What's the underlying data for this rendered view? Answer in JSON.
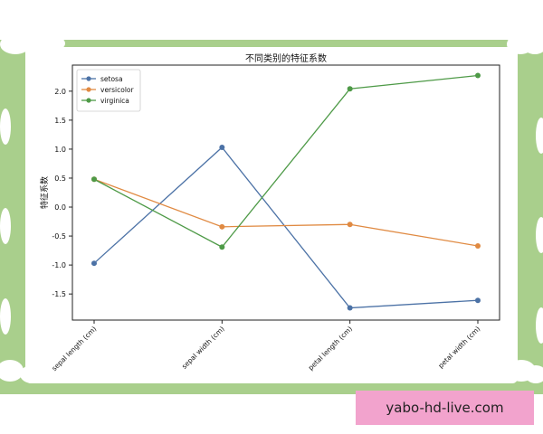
{
  "watermark": "yabo-hd-live.com",
  "colors": {
    "frame_green": "#a9cf8c",
    "watermark_pink": "#f2a3cd"
  },
  "chart_data": {
    "type": "line",
    "title": "不同类别的特征系数",
    "xlabel": "",
    "ylabel": "特征系数",
    "categories": [
      "sepal length (cm)",
      "sepal width (cm)",
      "petal length (cm)",
      "petal width (cm)"
    ],
    "ylim": [
      -1.95,
      2.45
    ],
    "yticks": [
      -1.5,
      -1.0,
      -0.5,
      0.0,
      0.5,
      1.0,
      1.5,
      2.0
    ],
    "ytick_labels": [
      "-1.5",
      "-1.0",
      "-0.5",
      "0.0",
      "0.5",
      "1.0",
      "1.5",
      "2.0"
    ],
    "legend_position": "top-left",
    "grid": false,
    "series": [
      {
        "name": "setosa",
        "color": "#4c72a6",
        "values": [
          -0.97,
          1.03,
          -1.74,
          -1.61
        ]
      },
      {
        "name": "versicolor",
        "color": "#e08a42",
        "values": [
          0.48,
          -0.34,
          -0.3,
          -0.67
        ]
      },
      {
        "name": "virginica",
        "color": "#4e9a47",
        "values": [
          0.48,
          -0.69,
          2.04,
          2.27
        ]
      }
    ]
  }
}
